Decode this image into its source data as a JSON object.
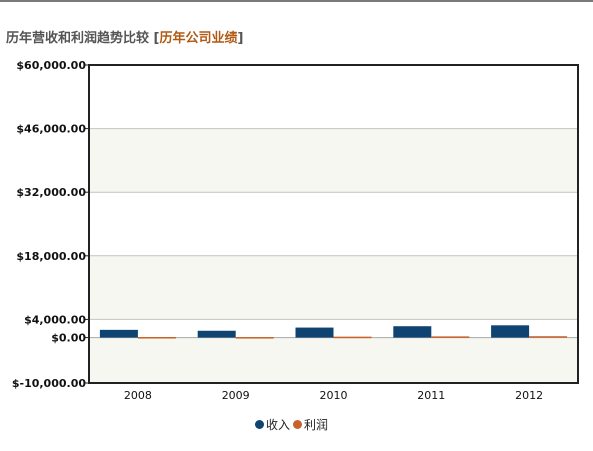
{
  "header": {
    "title": "历年营收和利润趋势比较",
    "bracket_open": "[",
    "link_label": "历年公司业绩",
    "bracket_close": "]"
  },
  "chart_data": {
    "type": "bar",
    "categories": [
      "2008",
      "2009",
      "2010",
      "2011",
      "2012"
    ],
    "series": [
      {
        "name": "收入",
        "color": "#0f4472",
        "values": [
          1700,
          1500,
          2200,
          2500,
          2700
        ]
      },
      {
        "name": "利润",
        "color": "#c9612a",
        "values": [
          120,
          110,
          200,
          260,
          300
        ]
      }
    ],
    "ylim": [
      -10000,
      60000
    ],
    "yticks": [
      {
        "value": 60000,
        "label": "$60,000.00"
      },
      {
        "value": 46000,
        "label": "$46,000.00"
      },
      {
        "value": 32000,
        "label": "$32,000.00"
      },
      {
        "value": 18000,
        "label": "$18,000.00"
      },
      {
        "value": 4000,
        "label": "$4,000.00"
      },
      {
        "value": 0,
        "label": "$0.00"
      },
      {
        "value": -10000,
        "label": "$-10,000.00"
      }
    ],
    "grid": true,
    "legend_position": "bottom-center",
    "band_color": "#f7f7f1"
  }
}
